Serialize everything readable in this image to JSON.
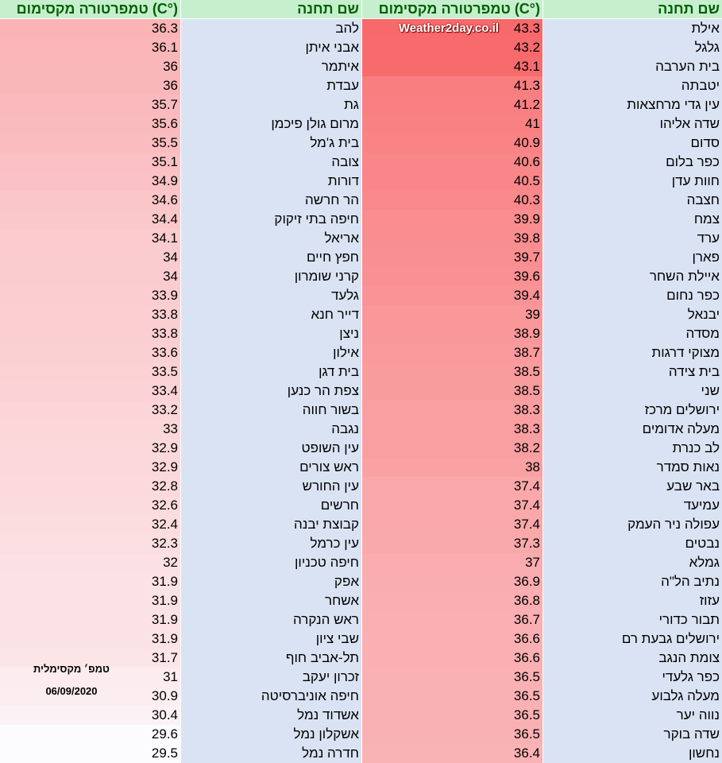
{
  "headers": {
    "station": "שם תחנה",
    "temperature": "טמפרטורה מקסימום (C°)"
  },
  "watermark": "Weather2day.co.il",
  "note": {
    "title": "טמפ׳ מקסימלית",
    "date": "06/09/2020"
  },
  "colors": {
    "header_bg": "#c6efce",
    "header_text": "#006100",
    "name_bg": "#dae3f3",
    "hot": "#f8696b",
    "cool": "#fcfcff"
  },
  "right_table": [
    {
      "station": "אילת",
      "max_temp": "43.3"
    },
    {
      "station": "גלגל",
      "max_temp": "43.2"
    },
    {
      "station": "בית הערבה",
      "max_temp": "43.1"
    },
    {
      "station": "יטבתה",
      "max_temp": "41.3"
    },
    {
      "station": "עין גדי מרחצאות",
      "max_temp": "41.2"
    },
    {
      "station": "שדה אליהו",
      "max_temp": "41"
    },
    {
      "station": "סדום",
      "max_temp": "40.9"
    },
    {
      "station": "כפר בלום",
      "max_temp": "40.6"
    },
    {
      "station": "חוות עדן",
      "max_temp": "40.5"
    },
    {
      "station": "חצבה",
      "max_temp": "40.3"
    },
    {
      "station": "צמח",
      "max_temp": "39.9"
    },
    {
      "station": "ערד",
      "max_temp": "39.8"
    },
    {
      "station": "פארן",
      "max_temp": "39.7"
    },
    {
      "station": "איילת השחר",
      "max_temp": "39.6"
    },
    {
      "station": "כפר נחום",
      "max_temp": "39.4"
    },
    {
      "station": "יבנאל",
      "max_temp": "39"
    },
    {
      "station": "מסדה",
      "max_temp": "38.9"
    },
    {
      "station": "מצוקי דרגות",
      "max_temp": "38.7"
    },
    {
      "station": "בית צידה",
      "max_temp": "38.5"
    },
    {
      "station": "שני",
      "max_temp": "38.5"
    },
    {
      "station": "ירושלים מרכז",
      "max_temp": "38.3"
    },
    {
      "station": "מעלה אדומים",
      "max_temp": "38.3"
    },
    {
      "station": "לב כנרת",
      "max_temp": "38.2"
    },
    {
      "station": "נאות סמדר",
      "max_temp": "38"
    },
    {
      "station": "באר שבע",
      "max_temp": "37.4"
    },
    {
      "station": "עמיעד",
      "max_temp": "37.4"
    },
    {
      "station": "עפולה ניר העמק",
      "max_temp": "37.4"
    },
    {
      "station": "נבטים",
      "max_temp": "37.3"
    },
    {
      "station": "גמלא",
      "max_temp": "37"
    },
    {
      "station": "נתיב הל\"ה",
      "max_temp": "36.9"
    },
    {
      "station": "עזוז",
      "max_temp": "36.8"
    },
    {
      "station": "תבור כדורי",
      "max_temp": "36.7"
    },
    {
      "station": "ירושלים גבעת רם",
      "max_temp": "36.6"
    },
    {
      "station": "צומת הנגב",
      "max_temp": "36.6"
    },
    {
      "station": "כפר גלעדי",
      "max_temp": "36.5"
    },
    {
      "station": "מעלה גלבוע",
      "max_temp": "36.5"
    },
    {
      "station": "נווה יער",
      "max_temp": "36.5"
    },
    {
      "station": "שדה בוקר",
      "max_temp": "36.5"
    },
    {
      "station": "נחשון",
      "max_temp": "36.4"
    }
  ],
  "left_table": [
    {
      "station": "להב",
      "max_temp": "36.3"
    },
    {
      "station": "אבני איתן",
      "max_temp": "36.1"
    },
    {
      "station": "איתמר",
      "max_temp": "36"
    },
    {
      "station": "עבדת",
      "max_temp": "36"
    },
    {
      "station": "גת",
      "max_temp": "35.7"
    },
    {
      "station": "מרום גולן פיכמן",
      "max_temp": "35.6"
    },
    {
      "station": "בית ג'מל",
      "max_temp": "35.5"
    },
    {
      "station": "צובה",
      "max_temp": "35.1"
    },
    {
      "station": "דורות",
      "max_temp": "34.9"
    },
    {
      "station": "הר חרשה",
      "max_temp": "34.6"
    },
    {
      "station": "חיפה בתי זיקוק",
      "max_temp": "34.4"
    },
    {
      "station": "אריאל",
      "max_temp": "34.1"
    },
    {
      "station": "חפץ חיים",
      "max_temp": "34"
    },
    {
      "station": "קרני שומרון",
      "max_temp": "34"
    },
    {
      "station": "גלעד",
      "max_temp": "33.9"
    },
    {
      "station": "דייר חנא",
      "max_temp": "33.8"
    },
    {
      "station": "ניצן",
      "max_temp": "33.8"
    },
    {
      "station": "אילון",
      "max_temp": "33.6"
    },
    {
      "station": "בית דגן",
      "max_temp": "33.5"
    },
    {
      "station": "צפת הר כנען",
      "max_temp": "33.4"
    },
    {
      "station": "בשור חווה",
      "max_temp": "33.2"
    },
    {
      "station": "נגבה",
      "max_temp": "33"
    },
    {
      "station": "עין השופט",
      "max_temp": "32.9"
    },
    {
      "station": "ראש צורים",
      "max_temp": "32.9"
    },
    {
      "station": "עין החורש",
      "max_temp": "32.8"
    },
    {
      "station": "חרשים",
      "max_temp": "32.6"
    },
    {
      "station": "קבוצת יבנה",
      "max_temp": "32.4"
    },
    {
      "station": "עין כרמל",
      "max_temp": "32.3"
    },
    {
      "station": "חיפה טכניון",
      "max_temp": "32"
    },
    {
      "station": "אפק",
      "max_temp": "31.9"
    },
    {
      "station": "אשחר",
      "max_temp": "31.9"
    },
    {
      "station": "ראש הנקרה",
      "max_temp": "31.9"
    },
    {
      "station": "שבי ציון",
      "max_temp": "31.9"
    },
    {
      "station": "תל-אביב חוף",
      "max_temp": "31.7"
    },
    {
      "station": "זכרון יעקב",
      "max_temp": "31"
    },
    {
      "station": "חיפה אוניברסיטה",
      "max_temp": "30.9"
    },
    {
      "station": "אשדוד נמל",
      "max_temp": "30.4"
    },
    {
      "station": "אשקלון נמל",
      "max_temp": "29.6"
    },
    {
      "station": "חדרה נמל",
      "max_temp": "29.5"
    }
  ]
}
